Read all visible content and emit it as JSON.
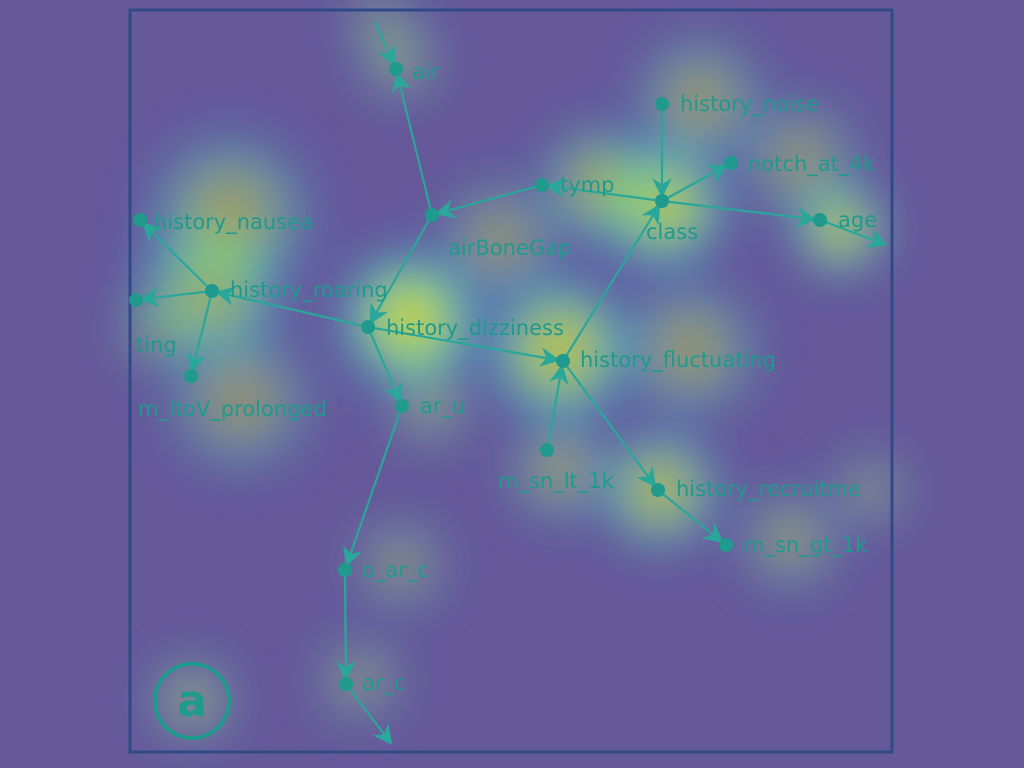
{
  "panel": {
    "letter": "a"
  },
  "colors": {
    "background": "#66599a",
    "frame": "#2f4a86",
    "edge": "#2aa69a",
    "node": "#1f9a8c",
    "label": "#1f9a8c",
    "heat_low": "#3f7fff",
    "heat_mid": "#39d7c4",
    "heat_high": "#b8ff3a",
    "heat_peak": "#ff9b2a"
  },
  "nodes": [
    {
      "id": "air",
      "label": "air"
    },
    {
      "id": "history_noise",
      "label": "history_noise"
    },
    {
      "id": "notch_at_4k",
      "label": "notch_at_4k"
    },
    {
      "id": "tymp",
      "label": "tymp"
    },
    {
      "id": "class",
      "label": "class"
    },
    {
      "id": "age",
      "label": "age"
    },
    {
      "id": "history_nausea",
      "label": "history_nausea"
    },
    {
      "id": "airBoneGap",
      "label": "airBoneGap"
    },
    {
      "id": "history_roaring",
      "label": "history_roaring"
    },
    {
      "id": "history_dizziness",
      "label": "history_dizziness"
    },
    {
      "id": "ting",
      "label": "ting"
    },
    {
      "id": "history_fluctuating",
      "label": "history_fluctuating"
    },
    {
      "id": "m_ltoV_prolonged",
      "label": "m_ltoV_prolonged"
    },
    {
      "id": "ar_u",
      "label": "ar_u"
    },
    {
      "id": "m_sn_lt_1k",
      "label": "m_sn_lt_1k"
    },
    {
      "id": "history_recruitment",
      "label": "history_recruitme"
    },
    {
      "id": "m_sn_gt_1k",
      "label": "m_sn_gt_1k"
    },
    {
      "id": "o_ar_c",
      "label": "o_ar_c"
    },
    {
      "id": "ar_c",
      "label": "ar_c"
    }
  ],
  "edges": [
    {
      "from": "edge_top",
      "to": "air"
    },
    {
      "from": "airBoneGap",
      "to": "air"
    },
    {
      "from": "tymp",
      "to": "airBoneGap"
    },
    {
      "from": "class",
      "to": "tymp"
    },
    {
      "from": "history_noise",
      "to": "class"
    },
    {
      "from": "class",
      "to": "notch_at_4k"
    },
    {
      "from": "class",
      "to": "age"
    },
    {
      "from": "age",
      "to": "edge_age"
    },
    {
      "from": "airBoneGap",
      "to": "history_dizziness"
    },
    {
      "from": "history_fluctuating",
      "to": "class"
    },
    {
      "from": "history_dizziness",
      "to": "history_roaring"
    },
    {
      "from": "history_dizziness",
      "to": "history_fluctuating"
    },
    {
      "from": "history_roaring",
      "to": "history_nausea"
    },
    {
      "from": "history_roaring",
      "to": "ting"
    },
    {
      "from": "history_roaring",
      "to": "m_ltoV_prolonged"
    },
    {
      "from": "m_sn_lt_1k",
      "to": "history_fluctuating"
    },
    {
      "from": "history_fluctuating",
      "to": "history_recruitment"
    },
    {
      "from": "history_recruitment",
      "to": "m_sn_gt_1k"
    },
    {
      "from": "history_dizziness",
      "to": "ar_u"
    },
    {
      "from": "ar_u",
      "to": "o_ar_c"
    },
    {
      "from": "o_ar_c",
      "to": "ar_c"
    },
    {
      "from": "ar_c",
      "to": "edge_bottom"
    }
  ]
}
